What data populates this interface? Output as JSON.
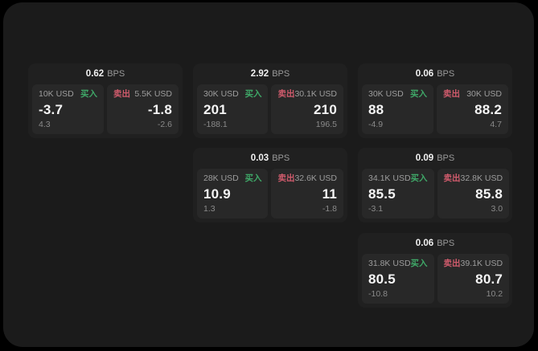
{
  "app": {
    "title": "quote-board"
  },
  "labels": {
    "bps": "BPS",
    "buy": "买入",
    "sell": "卖出"
  },
  "colors": {
    "background": "#1b1b1b",
    "card": "#202020",
    "panel": "#282828",
    "buy_green": "#3fa868",
    "sell_red": "#d05b6c"
  },
  "cards": [
    {
      "bps": "0.62",
      "row": 1,
      "col": 1,
      "buy": {
        "notional": "10K USD",
        "value": "-3.7",
        "sub": "4.3"
      },
      "sell": {
        "notional": "5.5K USD",
        "value": "-1.8",
        "sub": "-2.6"
      }
    },
    {
      "bps": "2.92",
      "row": 1,
      "col": 2,
      "buy": {
        "notional": "30K USD",
        "value": "201",
        "sub": "-188.1"
      },
      "sell": {
        "notional": "30.1K USD",
        "value": "210",
        "sub": "196.5"
      }
    },
    {
      "bps": "0.06",
      "row": 1,
      "col": 3,
      "buy": {
        "notional": "30K USD",
        "value": "88",
        "sub": "-4.9"
      },
      "sell": {
        "notional": "30K USD",
        "value": "88.2",
        "sub": "4.7"
      }
    },
    {
      "bps": "0.03",
      "row": 2,
      "col": 2,
      "buy": {
        "notional": "28K USD",
        "value": "10.9",
        "sub": "1.3"
      },
      "sell": {
        "notional": "32.6K USD",
        "value": "11",
        "sub": "-1.8"
      }
    },
    {
      "bps": "0.09",
      "row": 2,
      "col": 3,
      "buy": {
        "notional": "34.1K USD",
        "value": "85.5",
        "sub": "-3.1"
      },
      "sell": {
        "notional": "32.8K USD",
        "value": "85.8",
        "sub": "3.0"
      }
    },
    {
      "bps": "0.06",
      "row": 3,
      "col": 3,
      "buy": {
        "notional": "31.8K USD",
        "value": "80.5",
        "sub": "-10.8"
      },
      "sell": {
        "notional": "39.1K USD",
        "value": "80.7",
        "sub": "10.2"
      }
    }
  ]
}
